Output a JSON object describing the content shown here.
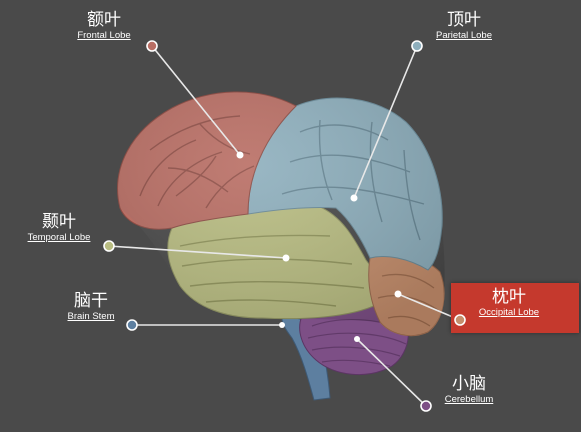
{
  "colors": {
    "background": "#4a4a4a",
    "frontal": "#b96e64",
    "parietal": "#8eafbd",
    "temporal": "#b9bd82",
    "occipital": "#c58e6c",
    "cerebellum": "#7d4f86",
    "brainstem": "#5d7fa0",
    "highlight": "#c5392d",
    "leader_line": "#e8e8e8"
  },
  "labels": {
    "frontal": {
      "zh": "额叶",
      "en": "Frontal Lobe"
    },
    "parietal": {
      "zh": "顶叶",
      "en": "Parietal Lobe"
    },
    "temporal": {
      "zh": "颞叶",
      "en": "Temporal Lobe"
    },
    "brainstem": {
      "zh": "脑干",
      "en": "Brain Stem"
    },
    "occipital": {
      "zh": "枕叶",
      "en": "Occipital Lobe"
    },
    "cerebellum": {
      "zh": "小脑",
      "en": "Cerebellum"
    }
  }
}
